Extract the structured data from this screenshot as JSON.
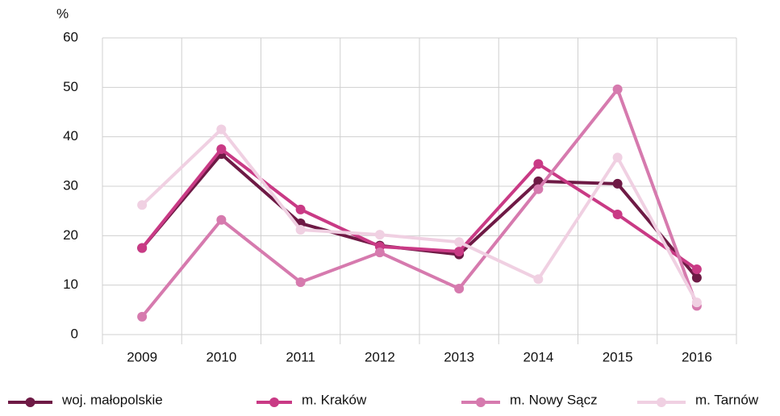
{
  "chart_data": {
    "type": "line",
    "y_label": "%",
    "categories": [
      "2009",
      "2010",
      "2011",
      "2012",
      "2013",
      "2014",
      "2015",
      "2016"
    ],
    "series": [
      {
        "name": "woj. małopolskie",
        "color": "#6e1a45",
        "values": [
          17.5,
          36.5,
          22.5,
          18,
          16.2,
          31,
          30.5,
          11.5
        ]
      },
      {
        "name": "m. Kraków",
        "color": "#c93a85",
        "values": [
          17.5,
          37.5,
          25.3,
          17.8,
          16.8,
          34.5,
          24.3,
          13.2
        ]
      },
      {
        "name": "m. Nowy Sącz",
        "color": "#d67aae",
        "values": [
          3.6,
          23.2,
          10.6,
          16.6,
          9.3,
          29.4,
          49.6,
          5.8
        ]
      },
      {
        "name": "m. Tarnów",
        "color": "#f0d0e2",
        "values": [
          26.2,
          41.5,
          21.2,
          20.2,
          18.7,
          11.2,
          35.8,
          6.5
        ]
      }
    ],
    "ylim": [
      0,
      60
    ],
    "yticks": [
      0,
      10,
      20,
      30,
      40,
      50,
      60
    ],
    "grid": true,
    "legend": "bottom"
  }
}
